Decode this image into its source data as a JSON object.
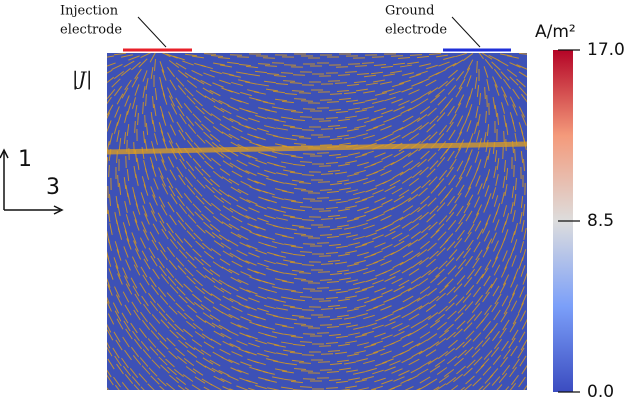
{
  "injection_label": [
    "Injection",
    "electrode"
  ],
  "ground_label": [
    "Ground",
    "electrode"
  ],
  "field_label": "|J|",
  "axes": {
    "vertical": "1",
    "horizontal": "3"
  },
  "colorbar": {
    "unit": "A/m²",
    "lim": [
      0,
      17
    ],
    "ticks": [
      {
        "value": 0,
        "label": "0.0"
      },
      {
        "value": 8.5,
        "label": "8.5"
      },
      {
        "value": 17,
        "label": "17.0"
      }
    ]
  }
}
